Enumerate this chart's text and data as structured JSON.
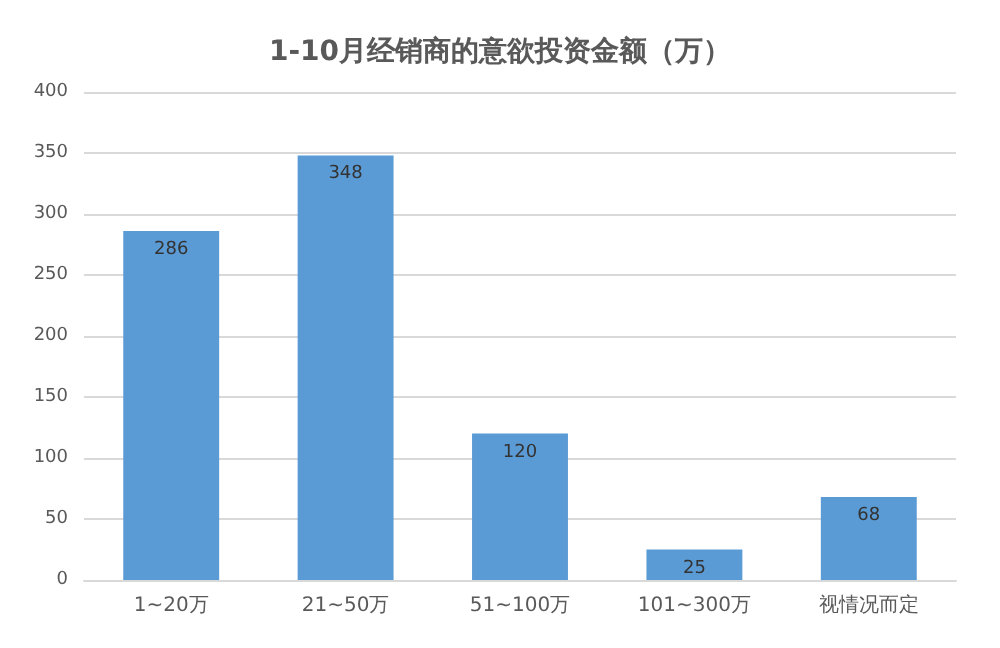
{
  "chart_data": {
    "type": "bar",
    "title": "1-10月经销商的意欲投资金额（万）",
    "categories": [
      "1~20万",
      "21~50万",
      "51~100万",
      "101~300万",
      "视情况而定"
    ],
    "values": [
      286,
      348,
      120,
      25,
      68
    ],
    "color": "#5b9bd5",
    "ylim": [
      0,
      400
    ],
    "yticks": [
      0,
      50,
      100,
      150,
      200,
      250,
      300,
      350,
      400
    ],
    "grid": "y",
    "data_labels": true
  }
}
